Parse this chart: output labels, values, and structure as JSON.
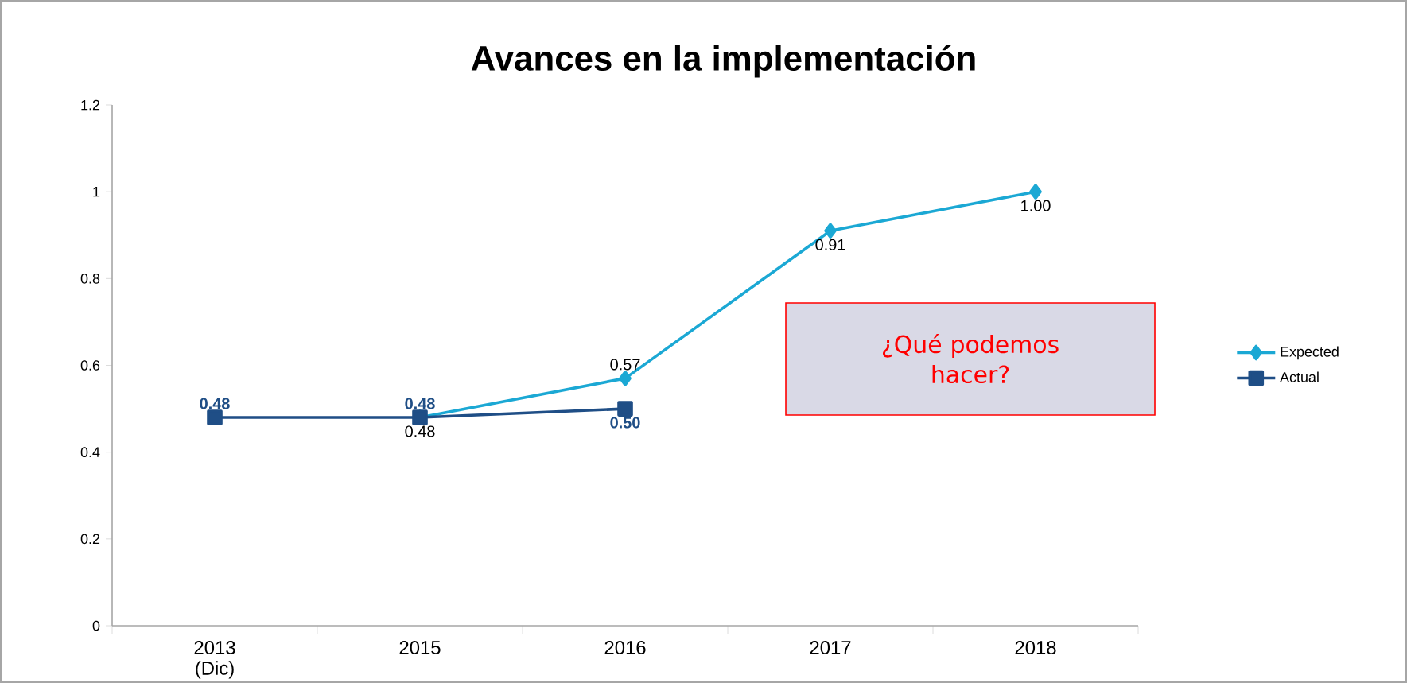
{
  "chart_data": {
    "type": "line",
    "title": "Avances en la implementación",
    "categories": [
      "2013 (Dic)",
      "2015",
      "2016",
      "2017",
      "2018"
    ],
    "series": [
      {
        "name": "Expected",
        "color": "#1ba8d4",
        "marker": "diamond",
        "values": [
          null,
          0.48,
          0.57,
          0.91,
          1.0
        ],
        "value_labels": [
          null,
          "0.48",
          "0.57",
          "0.91",
          "1.00"
        ]
      },
      {
        "name": "Actual",
        "color": "#1f4e86",
        "marker": "square",
        "values": [
          0.48,
          0.48,
          0.5,
          null,
          null
        ],
        "value_labels": [
          "0.48",
          "0.48",
          "0.50",
          null,
          null
        ]
      }
    ],
    "ylim": [
      0,
      1.2
    ],
    "yticks": [
      0,
      0.2,
      0.4,
      0.6,
      0.8,
      1,
      1.2
    ],
    "annotations": [
      "¿Qué podemos hacer?"
    ],
    "grid": false,
    "legend": "right",
    "line_style": "solid"
  }
}
